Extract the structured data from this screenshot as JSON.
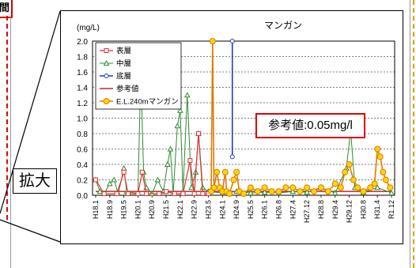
{
  "edge_label": "間",
  "zoom_label": "拡大",
  "callout": "参考値:0.05mg/l",
  "colors": {
    "surface": "#e03030",
    "middle": "#2e8b2e",
    "bottom": "#1f3fbf",
    "reference": "#b00000",
    "manganese": "#e07b00",
    "marker_fill": "#ffd700",
    "callout_border": "#e00000"
  },
  "chart_data": {
    "type": "line",
    "title": "マンガン",
    "ylabel": "(mg/L)",
    "ylim": [
      0,
      2.0
    ],
    "yticks": [
      "2.0",
      "1.8",
      "1.6",
      "1.4",
      "1.2",
      "1.0",
      "0.8",
      "0.6",
      "0.4",
      "0.2",
      "0.0"
    ],
    "grid": true,
    "legend_position": "top-left",
    "categories": [
      "H18.1",
      "H18.9",
      "H19.5",
      "H20.1",
      "H20.9",
      "H21.5",
      "H22.1",
      "H22.9",
      "H23.5",
      "H24.1",
      "H24.9",
      "H25.5",
      "H26.1",
      "H26.8",
      "H27.4",
      "H27.12",
      "H28.8",
      "H29.4",
      "H29.12",
      "H30.8",
      "H31.4",
      "R1.12"
    ],
    "series": [
      {
        "name": "表層",
        "marker": "square",
        "points": [
          [
            0,
            0.2
          ],
          [
            0.6,
            0.02
          ],
          [
            1.5,
            0.02
          ],
          [
            2.0,
            0.3
          ],
          [
            2.3,
            0.02
          ],
          [
            3.0,
            0.02
          ],
          [
            3.3,
            0.3
          ],
          [
            3.6,
            0.02
          ],
          [
            4.5,
            0.02
          ],
          [
            5.0,
            0.05
          ],
          [
            5.6,
            0.02
          ],
          [
            6.2,
            0.02
          ],
          [
            6.7,
            0.45
          ],
          [
            7.0,
            0.02
          ],
          [
            7.3,
            0.8
          ],
          [
            7.6,
            0.02
          ],
          [
            8.0,
            0.02
          ]
        ]
      },
      {
        "name": "中層",
        "marker": "triangle",
        "points": [
          [
            0,
            0.2
          ],
          [
            0.3,
            0.05
          ],
          [
            0.6,
            0.02
          ],
          [
            1.0,
            0.15
          ],
          [
            1.3,
            0.2
          ],
          [
            1.6,
            0.02
          ],
          [
            2.0,
            0.35
          ],
          [
            2.2,
            0.05
          ],
          [
            3.0,
            0.02
          ],
          [
            3.2,
            1.6
          ],
          [
            3.4,
            0.3
          ],
          [
            3.6,
            0.1
          ],
          [
            4.0,
            0.02
          ],
          [
            4.4,
            0.2
          ],
          [
            4.8,
            0.05
          ],
          [
            5.1,
            0.4
          ],
          [
            5.3,
            0.6
          ],
          [
            5.5,
            0.02
          ],
          [
            5.8,
            0.9
          ],
          [
            6.0,
            1.1
          ],
          [
            6.2,
            0.05
          ],
          [
            6.5,
            1.3
          ],
          [
            6.8,
            0.1
          ],
          [
            7.1,
            0.3
          ],
          [
            7.3,
            0.8
          ],
          [
            7.6,
            0.1
          ],
          [
            8.0,
            0.05
          ],
          [
            9,
            0.03
          ],
          [
            10,
            0.05
          ],
          [
            11,
            0.03
          ],
          [
            12,
            0.04
          ],
          [
            13,
            0.03
          ],
          [
            14,
            0.05
          ],
          [
            15,
            0.04
          ],
          [
            16,
            0.1
          ],
          [
            17,
            0.03
          ],
          [
            17.8,
            0.35
          ],
          [
            18.1,
            0.85
          ],
          [
            18.4,
            0.1
          ],
          [
            19,
            0.04
          ],
          [
            20,
            0.1
          ],
          [
            21,
            0.03
          ]
        ]
      },
      {
        "name": "底層",
        "marker": "circle",
        "points": [
          [
            9.7,
            2.0
          ],
          [
            9.7,
            0.5
          ]
        ]
      },
      {
        "name": "参考値",
        "marker": "none",
        "points": [
          [
            0,
            0.05
          ],
          [
            21,
            0.05
          ]
        ]
      },
      {
        "name": "E.L.240mマンガン",
        "marker": "circle-filled",
        "points": [
          [
            8.2,
            0.05
          ],
          [
            8.3,
            2.0
          ],
          [
            8.4,
            0.1
          ],
          [
            8.6,
            0.3
          ],
          [
            8.8,
            0.1
          ],
          [
            9.0,
            0.05
          ],
          [
            9.2,
            0.3
          ],
          [
            9.3,
            0.05
          ],
          [
            9.5,
            0.02
          ],
          [
            9.8,
            0.2
          ],
          [
            10.0,
            0.3
          ],
          [
            10.2,
            0.05
          ],
          [
            10.5,
            0.02
          ],
          [
            11,
            0.1
          ],
          [
            11.5,
            0.05
          ],
          [
            12,
            0.1
          ],
          [
            12.5,
            0.05
          ],
          [
            13,
            0.05
          ],
          [
            13.5,
            0.1
          ],
          [
            14,
            0.1
          ],
          [
            14.5,
            0.05
          ],
          [
            15,
            0.1
          ],
          [
            15.5,
            0.05
          ],
          [
            16,
            0.1
          ],
          [
            16.5,
            0.05
          ],
          [
            17,
            0.15
          ],
          [
            17.4,
            0.1
          ],
          [
            17.7,
            0.3
          ],
          [
            18.0,
            0.4
          ],
          [
            18.3,
            0.2
          ],
          [
            18.6,
            0.1
          ],
          [
            19,
            0.05
          ],
          [
            19.5,
            0.1
          ],
          [
            19.8,
            0.15
          ],
          [
            20.0,
            0.6
          ],
          [
            20.2,
            0.5
          ],
          [
            20.4,
            0.3
          ],
          [
            20.6,
            0.2
          ],
          [
            20.9,
            0.1
          ]
        ]
      }
    ]
  }
}
